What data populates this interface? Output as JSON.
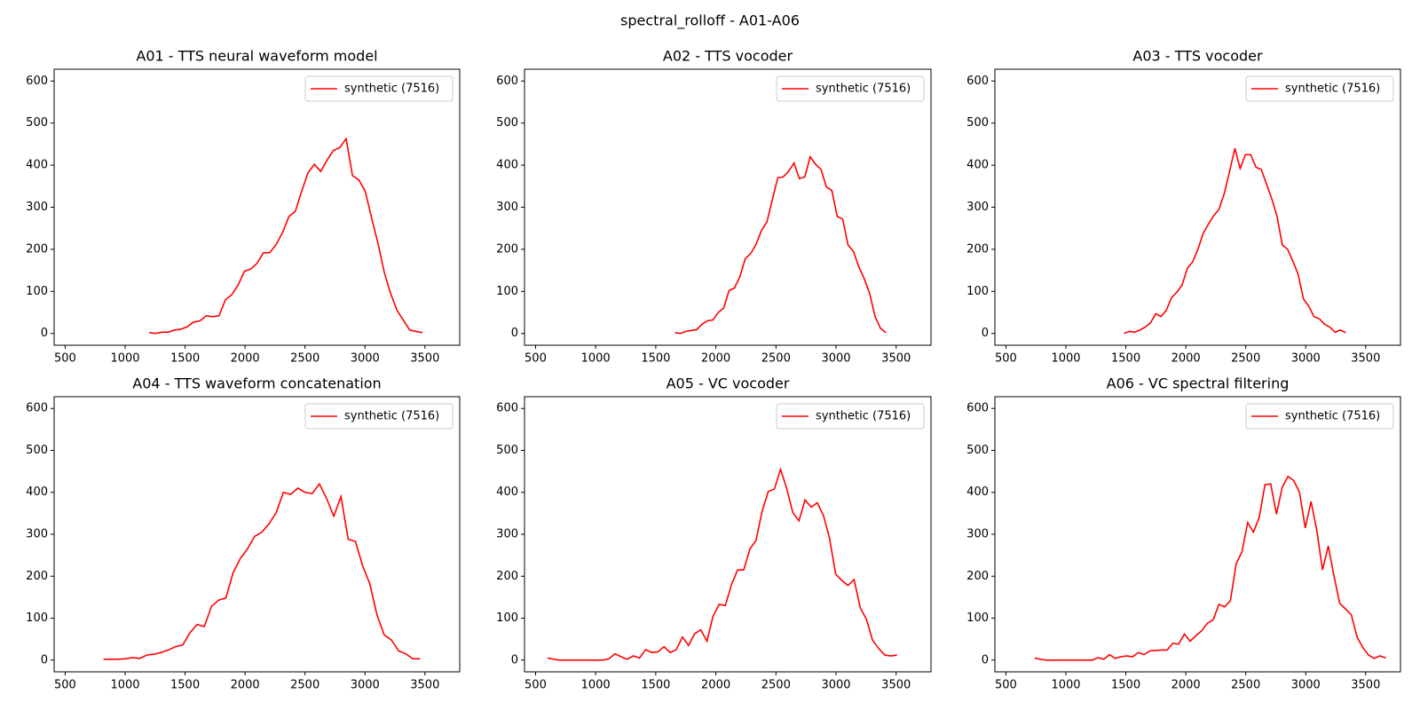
{
  "title": "spectral_rolloff - A01-A06",
  "chart_data": [
    {
      "type": "line",
      "title": "A01 - TTS neural waveform model",
      "legend": "upper right",
      "x": [
        1200,
        1253,
        1306,
        1359,
        1412,
        1465,
        1518,
        1571,
        1624,
        1677,
        1730,
        1783,
        1836,
        1889,
        1942,
        1995,
        2048,
        2101,
        2154,
        2207,
        2260,
        2313,
        2366,
        2419,
        2472,
        2525,
        2578,
        2631,
        2684,
        2737,
        2790,
        2843,
        2896,
        2949,
        3002,
        3055,
        3108,
        3161,
        3214,
        3267,
        3373,
        3479
      ],
      "series": [
        {
          "name": "synthetic (7516)",
          "color": "#ff0000",
          "values": [
            2,
            0,
            3,
            3,
            8,
            10,
            16,
            27,
            30,
            42,
            40,
            42,
            80,
            92,
            115,
            148,
            153,
            167,
            192,
            192,
            212,
            240,
            278,
            290,
            338,
            382,
            402,
            385,
            412,
            435,
            442,
            463,
            375,
            365,
            338,
            275,
            215,
            145,
            95,
            55,
            8,
            2
          ]
        }
      ],
      "xlim": [
        408,
        3790
      ],
      "ylim": [
        -28,
        628
      ],
      "xticks": [
        500,
        1000,
        1500,
        2000,
        2500,
        3000,
        3500
      ],
      "yticks": [
        0,
        100,
        200,
        300,
        400,
        500,
        600
      ]
    },
    {
      "type": "line",
      "title": "A02 - TTS vocoder",
      "legend": "upper right",
      "x": [
        1660,
        1705,
        1750,
        1795,
        1840,
        1885,
        1930,
        1975,
        2020,
        2065,
        2110,
        2155,
        2200,
        2245,
        2290,
        2335,
        2380,
        2425,
        2470,
        2515,
        2560,
        2605,
        2650,
        2695,
        2740,
        2785,
        2830,
        2875,
        2920,
        2965,
        3010,
        3055,
        3100,
        3145,
        3190,
        3235,
        3280,
        3325,
        3370,
        3415
      ],
      "series": [
        {
          "name": "synthetic (7516)",
          "color": "#ff0000",
          "values": [
            2,
            0,
            5,
            7,
            9,
            22,
            30,
            32,
            50,
            60,
            102,
            108,
            135,
            178,
            190,
            212,
            245,
            265,
            318,
            370,
            372,
            385,
            405,
            368,
            372,
            420,
            402,
            390,
            348,
            340,
            278,
            272,
            210,
            195,
            158,
            130,
            95,
            40,
            12,
            2
          ]
        }
      ],
      "xlim": [
        408,
        3790
      ],
      "ylim": [
        -28,
        628
      ],
      "xticks": [
        500,
        1000,
        1500,
        2000,
        2500,
        3000,
        3500
      ],
      "yticks": [
        0,
        100,
        200,
        300,
        400,
        500,
        600
      ]
    },
    {
      "type": "line",
      "title": "A03 - TTS vocoder",
      "legend": "upper right",
      "x": [
        1485,
        1529,
        1573,
        1617,
        1661,
        1705,
        1749,
        1793,
        1837,
        1881,
        1925,
        1969,
        2013,
        2057,
        2101,
        2145,
        2189,
        2233,
        2277,
        2321,
        2365,
        2409,
        2453,
        2497,
        2541,
        2585,
        2629,
        2673,
        2717,
        2761,
        2805,
        2849,
        2893,
        2937,
        2981,
        3025,
        3069,
        3113,
        3157,
        3201,
        3245,
        3289,
        3333
      ],
      "series": [
        {
          "name": "synthetic (7516)",
          "color": "#ff0000",
          "values": [
            0,
            5,
            3,
            8,
            15,
            25,
            47,
            40,
            55,
            85,
            98,
            115,
            155,
            170,
            200,
            238,
            260,
            280,
            295,
            333,
            385,
            440,
            392,
            425,
            425,
            395,
            390,
            355,
            320,
            278,
            210,
            200,
            172,
            140,
            82,
            65,
            40,
            35,
            22,
            15,
            3,
            8,
            2
          ]
        }
      ],
      "xlim": [
        408,
        3790
      ],
      "ylim": [
        -28,
        628
      ],
      "xticks": [
        500,
        1000,
        1500,
        2000,
        2500,
        3000,
        3500
      ],
      "yticks": [
        0,
        100,
        200,
        300,
        400,
        500,
        600
      ]
    },
    {
      "type": "line",
      "title": "A04 - TTS waveform concatenation",
      "legend": "upper right",
      "x": [
        820,
        880,
        940,
        1000,
        1060,
        1120,
        1180,
        1240,
        1300,
        1360,
        1420,
        1480,
        1540,
        1600,
        1660,
        1720,
        1780,
        1840,
        1900,
        1960,
        2020,
        2080,
        2140,
        2200,
        2260,
        2320,
        2380,
        2440,
        2500,
        2560,
        2620,
        2680,
        2740,
        2800,
        2860,
        2920,
        2980,
        3040,
        3100,
        3160,
        3220,
        3280,
        3340,
        3400,
        3460
      ],
      "series": [
        {
          "name": "synthetic (7516)",
          "color": "#ff0000",
          "values": [
            2,
            2,
            2,
            3,
            6,
            4,
            12,
            14,
            18,
            24,
            32,
            36,
            65,
            85,
            80,
            128,
            143,
            148,
            208,
            242,
            265,
            295,
            305,
            325,
            352,
            400,
            395,
            410,
            400,
            397,
            420,
            385,
            343,
            390,
            288,
            283,
            225,
            182,
            108,
            60,
            48,
            22,
            15,
            3,
            3
          ]
        }
      ],
      "xlim": [
        408,
        3790
      ],
      "ylim": [
        -28,
        628
      ],
      "xticks": [
        500,
        1000,
        1500,
        2000,
        2500,
        3000,
        3500
      ],
      "yticks": [
        0,
        100,
        200,
        300,
        400,
        500,
        600
      ]
    },
    {
      "type": "line",
      "title": "A05 - VC vocoder",
      "legend": "upper right",
      "x": [
        600,
        651,
        702,
        753,
        804,
        855,
        906,
        957,
        1008,
        1059,
        1110,
        1161,
        1212,
        1263,
        1314,
        1365,
        1416,
        1467,
        1518,
        1569,
        1620,
        1671,
        1722,
        1773,
        1824,
        1875,
        1926,
        1977,
        2028,
        2079,
        2130,
        2181,
        2232,
        2283,
        2334,
        2385,
        2436,
        2487,
        2538,
        2589,
        2640,
        2691,
        2742,
        2793,
        2844,
        2895,
        2946,
        2997,
        3048,
        3099,
        3150,
        3201,
        3252,
        3303,
        3354,
        3405,
        3456,
        3507
      ],
      "series": [
        {
          "name": "synthetic (7516)",
          "color": "#ff0000",
          "values": [
            5,
            2,
            0,
            0,
            0,
            0,
            0,
            0,
            0,
            0,
            3,
            15,
            8,
            2,
            10,
            5,
            25,
            18,
            20,
            32,
            18,
            25,
            55,
            35,
            63,
            72,
            45,
            105,
            133,
            130,
            180,
            215,
            215,
            265,
            285,
            355,
            402,
            408,
            455,
            410,
            352,
            332,
            382,
            365,
            375,
            345,
            290,
            205,
            190,
            178,
            192,
            125,
            98,
            48,
            28,
            12,
            10,
            12
          ]
        }
      ],
      "xlim": [
        408,
        3790
      ],
      "ylim": [
        -28,
        628
      ],
      "xticks": [
        500,
        1000,
        1500,
        2000,
        2500,
        3000,
        3500
      ],
      "yticks": [
        0,
        100,
        200,
        300,
        400,
        500,
        600
      ]
    },
    {
      "type": "line",
      "title": "A06 - VC spectral filtering",
      "legend": "upper right",
      "x": [
        740,
        788,
        836,
        884,
        932,
        980,
        1028,
        1076,
        1124,
        1172,
        1220,
        1268,
        1316,
        1364,
        1412,
        1460,
        1508,
        1556,
        1604,
        1652,
        1700,
        1748,
        1796,
        1844,
        1892,
        1940,
        1988,
        2036,
        2084,
        2132,
        2180,
        2228,
        2276,
        2324,
        2372,
        2420,
        2468,
        2516,
        2564,
        2612,
        2660,
        2708,
        2756,
        2804,
        2852,
        2900,
        2948,
        2996,
        3044,
        3092,
        3140,
        3188,
        3236,
        3284,
        3332,
        3380,
        3428,
        3476,
        3524,
        3572,
        3620,
        3668
      ],
      "series": [
        {
          "name": "synthetic (7516)",
          "color": "#ff0000",
          "values": [
            5,
            2,
            0,
            0,
            0,
            0,
            0,
            0,
            0,
            0,
            0,
            6,
            2,
            13,
            4,
            8,
            10,
            8,
            18,
            13,
            22,
            23,
            24,
            24,
            40,
            38,
            62,
            45,
            58,
            70,
            88,
            96,
            133,
            127,
            142,
            230,
            258,
            328,
            305,
            340,
            418,
            420,
            348,
            412,
            438,
            428,
            400,
            315,
            378,
            310,
            215,
            272,
            200,
            135,
            122,
            108,
            55,
            30,
            12,
            4,
            10,
            5
          ]
        }
      ],
      "xlim": [
        408,
        3790
      ],
      "ylim": [
        -28,
        628
      ],
      "xticks": [
        500,
        1000,
        1500,
        2000,
        2500,
        3000,
        3500
      ],
      "yticks": [
        0,
        100,
        200,
        300,
        400,
        500,
        600
      ]
    }
  ]
}
